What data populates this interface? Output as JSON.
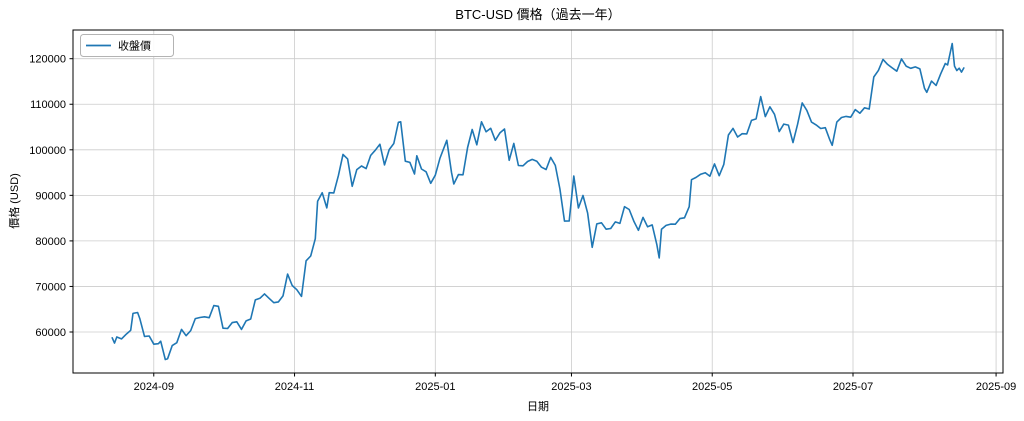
{
  "chart_data": {
    "type": "line",
    "title": "BTC-USD 價格（過去一年）",
    "xlabel": "日期",
    "ylabel": "價格 (USD)",
    "legend": [
      "收盤價"
    ],
    "legend_position": "upper left",
    "grid": true,
    "line_color": "#1f77b4",
    "grid_color": "#cccccc",
    "spine_color": "#000000",
    "x_tick_labels": [
      "2024-09",
      "2024-11",
      "2025-01",
      "2025-03",
      "2025-05",
      "2025-07",
      "2025-09"
    ],
    "y_tick_labels": [
      "60000",
      "70000",
      "80000",
      "90000",
      "100000",
      "110000",
      "120000"
    ],
    "y_ticks": [
      60000,
      70000,
      80000,
      90000,
      100000,
      110000,
      120000
    ],
    "x_domain": [
      "2024-07-28",
      "2025-09-04"
    ],
    "ylim": [
      51000,
      126300
    ],
    "series": [
      {
        "name": "收盤價",
        "points": [
          [
            "2024-08-14",
            58737
          ],
          [
            "2024-08-15",
            57560
          ],
          [
            "2024-08-16",
            58894
          ],
          [
            "2024-08-18",
            58483
          ],
          [
            "2024-08-20",
            59493
          ],
          [
            "2024-08-22",
            60382
          ],
          [
            "2024-08-23",
            64094
          ],
          [
            "2024-08-25",
            64276
          ],
          [
            "2024-08-26",
            62880
          ],
          [
            "2024-08-28",
            59027
          ],
          [
            "2024-08-30",
            59120
          ],
          [
            "2024-09-01",
            57325
          ],
          [
            "2024-09-03",
            57431
          ],
          [
            "2024-09-04",
            57971
          ],
          [
            "2024-09-06",
            53962
          ],
          [
            "2024-09-07",
            54139
          ],
          [
            "2024-09-09",
            57019
          ],
          [
            "2024-09-11",
            57648
          ],
          [
            "2024-09-13",
            60571
          ],
          [
            "2024-09-15",
            59182
          ],
          [
            "2024-09-17",
            60308
          ],
          [
            "2024-09-19",
            62940
          ],
          [
            "2024-09-21",
            63193
          ],
          [
            "2024-09-23",
            63339
          ],
          [
            "2024-09-25",
            63143
          ],
          [
            "2024-09-27",
            65790
          ],
          [
            "2024-09-29",
            65635
          ],
          [
            "2024-10-01",
            60837
          ],
          [
            "2024-10-03",
            60759
          ],
          [
            "2024-10-05",
            62068
          ],
          [
            "2024-10-07",
            62236
          ],
          [
            "2024-10-09",
            60582
          ],
          [
            "2024-10-11",
            62445
          ],
          [
            "2024-10-13",
            62851
          ],
          [
            "2024-10-15",
            67041
          ],
          [
            "2024-10-17",
            67399
          ],
          [
            "2024-10-19",
            68362
          ],
          [
            "2024-10-21",
            67367
          ],
          [
            "2024-10-23",
            66432
          ],
          [
            "2024-10-25",
            66600
          ],
          [
            "2024-10-27",
            67929
          ],
          [
            "2024-10-29",
            72720
          ],
          [
            "2024-10-31",
            70215
          ],
          [
            "2024-11-02",
            69289
          ],
          [
            "2024-11-04",
            67811
          ],
          [
            "2024-11-06",
            75639
          ],
          [
            "2024-11-08",
            76677
          ],
          [
            "2024-11-10",
            80475
          ],
          [
            "2024-11-11",
            88702
          ],
          [
            "2024-11-13",
            90584
          ],
          [
            "2024-11-15",
            87250
          ],
          [
            "2024-11-16",
            90586
          ],
          [
            "2024-11-18",
            90542
          ],
          [
            "2024-11-20",
            94339
          ],
          [
            "2024-11-22",
            98997
          ],
          [
            "2024-11-24",
            98013
          ],
          [
            "2024-11-26",
            91985
          ],
          [
            "2024-11-28",
            95652
          ],
          [
            "2024-11-30",
            96449
          ],
          [
            "2024-12-02",
            95865
          ],
          [
            "2024-12-04",
            98768
          ],
          [
            "2024-12-06",
            99920
          ],
          [
            "2024-12-08",
            101236
          ],
          [
            "2024-12-10",
            96675
          ],
          [
            "2024-12-12",
            100043
          ],
          [
            "2024-12-14",
            101372
          ],
          [
            "2024-12-16",
            106029
          ],
          [
            "2024-12-17",
            106141
          ],
          [
            "2024-12-19",
            97490
          ],
          [
            "2024-12-21",
            97224
          ],
          [
            "2024-12-23",
            94686
          ],
          [
            "2024-12-24",
            98676
          ],
          [
            "2024-12-26",
            95795
          ],
          [
            "2024-12-28",
            95164
          ],
          [
            "2024-12-30",
            92643
          ],
          [
            "2025-01-01",
            94420
          ],
          [
            "2025-01-03",
            98107
          ],
          [
            "2025-01-06",
            102078
          ],
          [
            "2025-01-08",
            95043
          ],
          [
            "2025-01-09",
            92484
          ],
          [
            "2025-01-11",
            94566
          ],
          [
            "2025-01-13",
            94516
          ],
          [
            "2025-01-15",
            100504
          ],
          [
            "2025-01-17",
            104462
          ],
          [
            "2025-01-19",
            101089
          ],
          [
            "2025-01-21",
            106146
          ],
          [
            "2025-01-23",
            103960
          ],
          [
            "2025-01-25",
            104714
          ],
          [
            "2025-01-27",
            102082
          ],
          [
            "2025-01-29",
            103703
          ],
          [
            "2025-01-31",
            104556
          ],
          [
            "2025-02-02",
            97688
          ],
          [
            "2025-02-04",
            101405
          ],
          [
            "2025-02-06",
            96554
          ],
          [
            "2025-02-08",
            96482
          ],
          [
            "2025-02-10",
            97437
          ],
          [
            "2025-02-12",
            97885
          ],
          [
            "2025-02-14",
            97508
          ],
          [
            "2025-02-16",
            96175
          ],
          [
            "2025-02-18",
            95671
          ],
          [
            "2025-02-20",
            98333
          ],
          [
            "2025-02-22",
            96577
          ],
          [
            "2025-02-24",
            91418
          ],
          [
            "2025-02-26",
            84347
          ],
          [
            "2025-02-28",
            84373
          ],
          [
            "2025-03-02",
            94248
          ],
          [
            "2025-03-04",
            87222
          ],
          [
            "2025-03-06",
            89962
          ],
          [
            "2025-03-08",
            86154
          ],
          [
            "2025-03-10",
            78595
          ],
          [
            "2025-03-12",
            83722
          ],
          [
            "2025-03-14",
            83969
          ],
          [
            "2025-03-16",
            82579
          ],
          [
            "2025-03-18",
            82718
          ],
          [
            "2025-03-20",
            84167
          ],
          [
            "2025-03-22",
            83832
          ],
          [
            "2025-03-24",
            87498
          ],
          [
            "2025-03-26",
            86900
          ],
          [
            "2025-03-28",
            84353
          ],
          [
            "2025-03-30",
            82334
          ],
          [
            "2025-04-01",
            85169
          ],
          [
            "2025-04-03",
            83102
          ],
          [
            "2025-04-05",
            83504
          ],
          [
            "2025-04-07",
            79235
          ],
          [
            "2025-04-08",
            76271
          ],
          [
            "2025-04-09",
            82574
          ],
          [
            "2025-04-11",
            83404
          ],
          [
            "2025-04-13",
            83684
          ],
          [
            "2025-04-15",
            83668
          ],
          [
            "2025-04-17",
            84895
          ],
          [
            "2025-04-19",
            85063
          ],
          [
            "2025-04-21",
            87518
          ],
          [
            "2025-04-22",
            93441
          ],
          [
            "2025-04-24",
            93943
          ],
          [
            "2025-04-26",
            94646
          ],
          [
            "2025-04-28",
            94979
          ],
          [
            "2025-04-30",
            94207
          ],
          [
            "2025-05-02",
            96910
          ],
          [
            "2025-05-04",
            94316
          ],
          [
            "2025-05-06",
            96802
          ],
          [
            "2025-05-08",
            103241
          ],
          [
            "2025-05-10",
            104696
          ],
          [
            "2025-05-12",
            102812
          ],
          [
            "2025-05-14",
            103539
          ],
          [
            "2025-05-16",
            103489
          ],
          [
            "2025-05-18",
            106446
          ],
          [
            "2025-05-20",
            106791
          ],
          [
            "2025-05-22",
            111673
          ],
          [
            "2025-05-24",
            107287
          ],
          [
            "2025-05-26",
            109440
          ],
          [
            "2025-05-28",
            107802
          ],
          [
            "2025-05-30",
            103998
          ],
          [
            "2025-06-01",
            105652
          ],
          [
            "2025-06-03",
            105432
          ],
          [
            "2025-06-05",
            101576
          ],
          [
            "2025-06-07",
            105616
          ],
          [
            "2025-06-09",
            110294
          ],
          [
            "2025-06-11",
            108679
          ],
          [
            "2025-06-13",
            106090
          ],
          [
            "2025-06-15",
            105472
          ],
          [
            "2025-06-17",
            104684
          ],
          [
            "2025-06-19",
            104857
          ],
          [
            "2025-06-21",
            102120
          ],
          [
            "2025-06-22",
            100987
          ],
          [
            "2025-06-24",
            106074
          ],
          [
            "2025-06-26",
            107088
          ],
          [
            "2025-06-28",
            107332
          ],
          [
            "2025-06-30",
            107167
          ],
          [
            "2025-07-02",
            108824
          ],
          [
            "2025-07-04",
            108036
          ],
          [
            "2025-07-06",
            109217
          ],
          [
            "2025-07-08",
            108953
          ],
          [
            "2025-07-10",
            115988
          ],
          [
            "2025-07-12",
            117435
          ],
          [
            "2025-07-14",
            119850
          ],
          [
            "2025-07-16",
            118748
          ],
          [
            "2025-07-18",
            117989
          ],
          [
            "2025-07-20",
            117256
          ],
          [
            "2025-07-22",
            119955
          ],
          [
            "2025-07-24",
            118368
          ],
          [
            "2025-07-26",
            117902
          ],
          [
            "2025-07-28",
            118206
          ],
          [
            "2025-07-30",
            117770
          ],
          [
            "2025-08-01",
            113491
          ],
          [
            "2025-08-02",
            112623
          ],
          [
            "2025-08-04",
            115073
          ],
          [
            "2025-08-06",
            114135
          ],
          [
            "2025-08-08",
            116692
          ],
          [
            "2025-08-10",
            118947
          ],
          [
            "2025-08-11",
            118628
          ],
          [
            "2025-08-13",
            123344
          ],
          [
            "2025-08-14",
            118368
          ],
          [
            "2025-08-15",
            117398
          ],
          [
            "2025-08-16",
            117905
          ],
          [
            "2025-08-17",
            117048
          ],
          [
            "2025-08-18",
            117950
          ]
        ]
      }
    ]
  }
}
